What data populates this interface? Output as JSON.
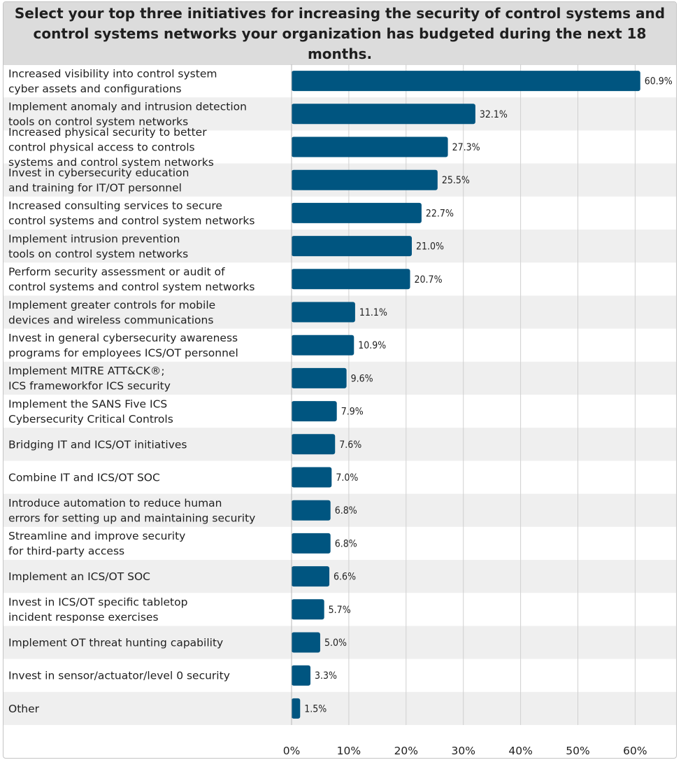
{
  "chart_data": {
    "type": "bar",
    "orientation": "horizontal",
    "title": "Select your top three initiatives for increasing the security of control systems and control systems networks your organization has budgeted during the next 18 months.",
    "bar_color": "#005580",
    "stripe_color": "#efefef",
    "categories": [
      [
        "Increased visibility into control system",
        "cyber assets and configurations"
      ],
      [
        "Implement anomaly and intrusion detection",
        "tools on control system networks"
      ],
      [
        "Increased physical security to better",
        "control physical access to controls",
        "systems and control system networks"
      ],
      [
        "Invest in cybersecurity education",
        "and training for IT/OT personnel"
      ],
      [
        "Increased consulting services to secure",
        "control systems and control system networks"
      ],
      [
        "Implement intrusion prevention",
        "tools on control system networks"
      ],
      [
        "Perform security assessment or audit of",
        "control systems and control system networks"
      ],
      [
        "Implement greater controls for mobile",
        "devices and wireless communications"
      ],
      [
        "Invest in general cybersecurity awareness",
        "programs for employees ICS/OT personnel"
      ],
      [
        "Implement MITRE ATT&CK®;",
        "ICS frameworkfor ICS security"
      ],
      [
        "Implement the SANS Five ICS",
        "Cybersecurity Critical Controls"
      ],
      [
        "Bridging IT and ICS/OT initiatives"
      ],
      [
        "Combine IT and ICS/OT SOC"
      ],
      [
        "Introduce automation to reduce human",
        "errors for setting up and maintaining security"
      ],
      [
        "Streamline and improve security",
        "for third-party access"
      ],
      [
        "Implement an ICS/OT SOC"
      ],
      [
        "Invest in ICS/OT specific tabletop",
        "incident response exercises"
      ],
      [
        "Implement OT threat hunting capability"
      ],
      [
        "Invest in sensor/actuator/level 0 security"
      ],
      [
        "Other"
      ]
    ],
    "values": [
      60.9,
      32.1,
      27.3,
      25.5,
      22.7,
      21.0,
      20.7,
      11.1,
      10.9,
      9.6,
      7.9,
      7.6,
      7.0,
      6.8,
      6.8,
      6.6,
      5.7,
      5.0,
      3.3,
      1.5
    ],
    "value_labels": [
      "60.9%",
      "32.1%",
      "27.3%",
      "25.5%",
      "22.7%",
      "21.0%",
      "20.7%",
      "11.1%",
      "10.9%",
      "9.6%",
      "7.9%",
      "7.6%",
      "7.0%",
      "6.8%",
      "6.8%",
      "6.6%",
      "5.7%",
      "5.0%",
      "3.3%",
      "1.5%"
    ],
    "xlim": [
      0,
      60
    ],
    "xticks": [
      0,
      10,
      20,
      30,
      40,
      50,
      60
    ],
    "xtick_labels": [
      "0%",
      "10%",
      "20%",
      "30%",
      "40%",
      "50%",
      "60%"
    ],
    "grid": true,
    "xlabel": "",
    "ylabel": ""
  }
}
